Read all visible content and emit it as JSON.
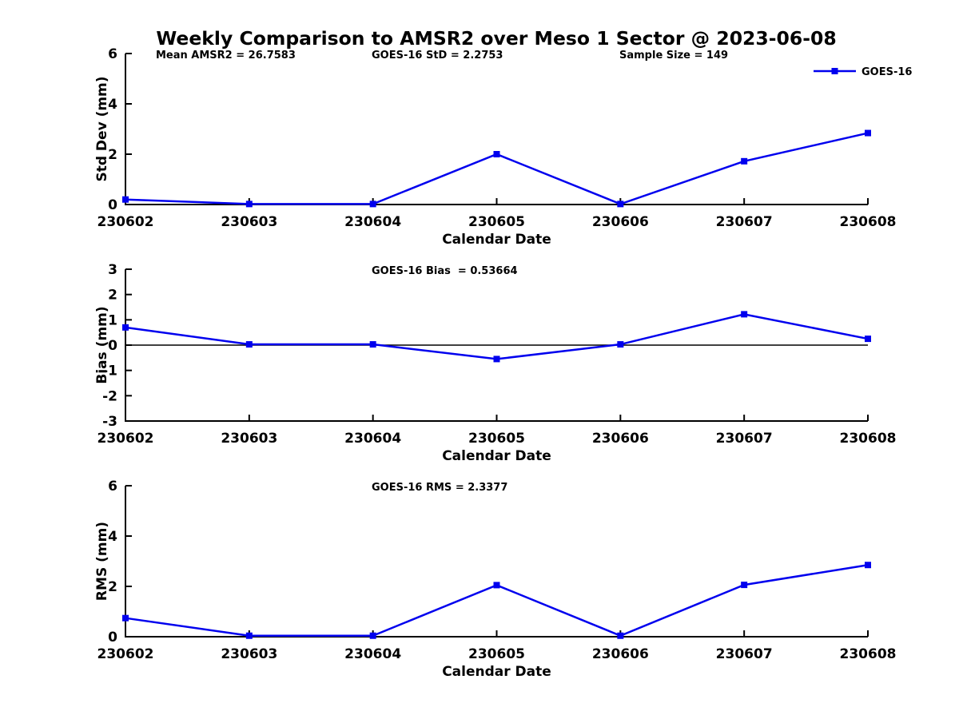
{
  "title": "Weekly Comparison to AMSR2 over Meso 1 Sector @ 2023-06-08",
  "colors": {
    "series_line": "#0000EE",
    "axis": "#000000",
    "text": "#000000",
    "background": "#FFFFFF"
  },
  "legend": {
    "label": "GOES-16",
    "position": "top-right",
    "marker": "filled-square"
  },
  "chart_data": [
    {
      "id": "std-dev",
      "type": "line",
      "categories": [
        "230602",
        "230603",
        "230604",
        "230605",
        "230606",
        "230607",
        "230608"
      ],
      "series": [
        {
          "name": "GOES-16",
          "values": [
            0.2,
            0.02,
            0.02,
            2.0,
            0.02,
            1.72,
            2.84
          ]
        }
      ],
      "xlabel": "Calendar Date",
      "ylabel": "Std Dev (mm)",
      "ylim": [
        0,
        6
      ],
      "yticks": [
        0,
        2,
        4,
        6
      ],
      "grid": false,
      "zero_line": false,
      "show_legend": true,
      "annotations": [
        "Mean AMSR2 = 26.7583",
        "GOES-16 StD = 2.2753",
        "Sample Size = 149"
      ]
    },
    {
      "id": "bias",
      "type": "line",
      "categories": [
        "230602",
        "230603",
        "230604",
        "230605",
        "230606",
        "230607",
        "230608"
      ],
      "series": [
        {
          "name": "GOES-16",
          "values": [
            0.7,
            0.03,
            0.03,
            -0.55,
            0.03,
            1.22,
            0.25
          ]
        }
      ],
      "xlabel": "Calendar Date",
      "ylabel": "Bias (mm)",
      "ylim": [
        -3,
        3
      ],
      "yticks": [
        -3,
        -2,
        -1,
        0,
        1,
        2,
        3
      ],
      "grid": false,
      "zero_line": true,
      "show_legend": false,
      "annotations": [
        "GOES-16 Bias  = 0.53664"
      ]
    },
    {
      "id": "rms",
      "type": "line",
      "categories": [
        "230602",
        "230603",
        "230604",
        "230605",
        "230606",
        "230607",
        "230608"
      ],
      "series": [
        {
          "name": "GOES-16",
          "values": [
            0.74,
            0.04,
            0.04,
            2.05,
            0.04,
            2.06,
            2.85
          ]
        }
      ],
      "xlabel": "Calendar Date",
      "ylabel": "RMS (mm)",
      "ylim": [
        0,
        6
      ],
      "yticks": [
        0,
        2,
        4,
        6
      ],
      "grid": false,
      "zero_line": false,
      "show_legend": false,
      "annotations": [
        "GOES-16 RMS = 2.3377"
      ]
    }
  ]
}
